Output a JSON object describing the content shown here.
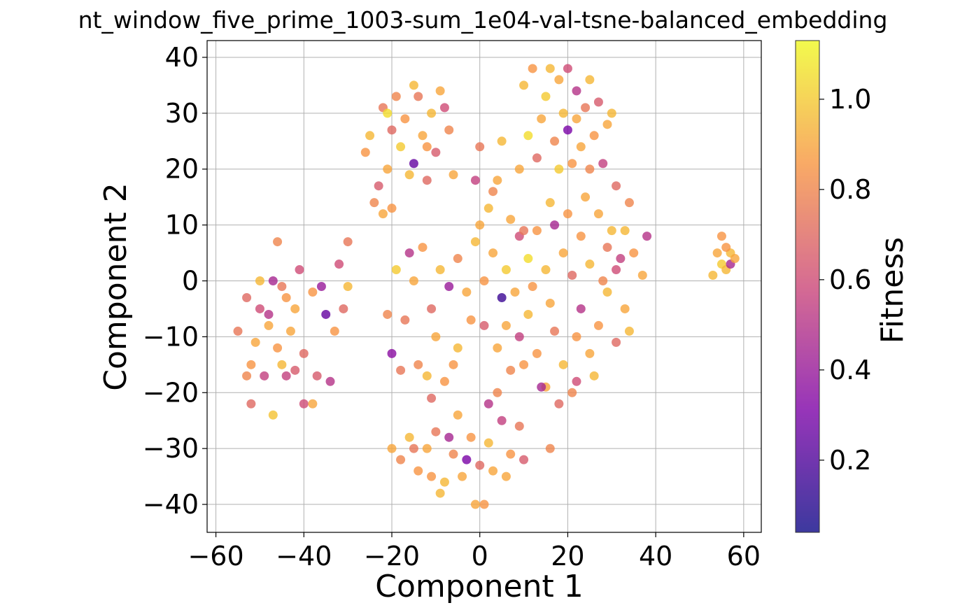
{
  "chart_data": {
    "type": "scatter",
    "title": "nt_window_five_prime_1003-sum_1e04-val-tsne-balanced_embedding",
    "xlabel": "Component 1",
    "ylabel": "Component 2",
    "xlim": [
      -62,
      64
    ],
    "ylim": [
      -45,
      43
    ],
    "xticks": [
      -60,
      -40,
      -20,
      0,
      20,
      40,
      60
    ],
    "yticks": [
      -40,
      -30,
      -20,
      -10,
      0,
      10,
      20,
      30,
      40
    ],
    "grid": true,
    "colormap": "plasma",
    "colorbar": {
      "label": "Fitness",
      "range": [
        0.04,
        1.13
      ],
      "ticks": [
        0.2,
        0.4,
        0.6,
        0.8,
        1.0
      ]
    },
    "points": [
      {
        "x": -55,
        "y": -9,
        "c": 0.75
      },
      {
        "x": -53,
        "y": -3,
        "c": 0.7
      },
      {
        "x": -52,
        "y": -15,
        "c": 0.85
      },
      {
        "x": -52,
        "y": -22,
        "c": 0.7
      },
      {
        "x": -51,
        "y": -11,
        "c": 0.9
      },
      {
        "x": -50,
        "y": 0,
        "c": 0.95
      },
      {
        "x": -50,
        "y": -5,
        "c": 0.6
      },
      {
        "x": -49,
        "y": -17,
        "c": 0.55
      },
      {
        "x": -48,
        "y": -8,
        "c": 0.9
      },
      {
        "x": -47,
        "y": 0,
        "c": 0.45
      },
      {
        "x": -47,
        "y": -24,
        "c": 0.98
      },
      {
        "x": -46,
        "y": 7,
        "c": 0.8
      },
      {
        "x": -46,
        "y": -12,
        "c": 0.85
      },
      {
        "x": -45,
        "y": -15,
        "c": 0.95
      },
      {
        "x": -44,
        "y": -3,
        "c": 0.85
      },
      {
        "x": -44,
        "y": -17,
        "c": 0.55
      },
      {
        "x": -43,
        "y": -9,
        "c": 0.9
      },
      {
        "x": -42,
        "y": -5,
        "c": 0.9
      },
      {
        "x": -41,
        "y": 2,
        "c": 0.6
      },
      {
        "x": -40,
        "y": -13,
        "c": 0.7
      },
      {
        "x": -40,
        "y": -22,
        "c": 0.6
      },
      {
        "x": -38,
        "y": -2,
        "c": 0.85
      },
      {
        "x": -37,
        "y": -17,
        "c": 0.65
      },
      {
        "x": -36,
        "y": -1,
        "c": 0.4
      },
      {
        "x": -35,
        "y": -6,
        "c": 0.25
      },
      {
        "x": -34,
        "y": -18,
        "c": 0.5
      },
      {
        "x": -33,
        "y": -9,
        "c": 0.85
      },
      {
        "x": -32,
        "y": 3,
        "c": 0.6
      },
      {
        "x": -31,
        "y": -5,
        "c": 0.7
      },
      {
        "x": -30,
        "y": 7,
        "c": 0.75
      },
      {
        "x": -30,
        "y": -1,
        "c": 0.95
      },
      {
        "x": -38,
        "y": -22,
        "c": 0.9
      },
      {
        "x": -45,
        "y": -1,
        "c": 0.75
      },
      {
        "x": -53,
        "y": -17,
        "c": 0.8
      },
      {
        "x": -48,
        "y": -6,
        "c": 0.5
      },
      {
        "x": -42,
        "y": -16,
        "c": 0.65
      },
      {
        "x": -26,
        "y": 23,
        "c": 0.85
      },
      {
        "x": -25,
        "y": 26,
        "c": 0.95
      },
      {
        "x": -23,
        "y": 17,
        "c": 0.65
      },
      {
        "x": -22,
        "y": 31,
        "c": 0.75
      },
      {
        "x": -22,
        "y": 12,
        "c": 0.9
      },
      {
        "x": -21,
        "y": 20,
        "c": 0.9
      },
      {
        "x": -20,
        "y": 27,
        "c": 0.7
      },
      {
        "x": -19,
        "y": 33,
        "c": 0.8
      },
      {
        "x": -18,
        "y": 24,
        "c": 1.0
      },
      {
        "x": -17,
        "y": 29,
        "c": 0.85
      },
      {
        "x": -16,
        "y": 19,
        "c": 0.95
      },
      {
        "x": -15,
        "y": 21,
        "c": 0.25
      },
      {
        "x": -14,
        "y": 33,
        "c": 0.75
      },
      {
        "x": -13,
        "y": 26,
        "c": 0.9
      },
      {
        "x": -12,
        "y": 18,
        "c": 0.7
      },
      {
        "x": -11,
        "y": 30,
        "c": 0.95
      },
      {
        "x": -10,
        "y": 23,
        "c": 0.65
      },
      {
        "x": -9,
        "y": 34,
        "c": 0.9
      },
      {
        "x": -8,
        "y": 31,
        "c": 0.6
      },
      {
        "x": -7,
        "y": 27,
        "c": 0.8
      },
      {
        "x": -6,
        "y": 19,
        "c": 0.9
      },
      {
        "x": -24,
        "y": 14,
        "c": 0.8
      },
      {
        "x": -20,
        "y": 13,
        "c": 0.85
      },
      {
        "x": -15,
        "y": 35,
        "c": 0.95
      },
      {
        "x": -21,
        "y": 30,
        "c": 1.05
      },
      {
        "x": -12,
        "y": 24,
        "c": 0.85
      },
      {
        "x": 10,
        "y": 35,
        "c": 0.95
      },
      {
        "x": 12,
        "y": 38,
        "c": 0.85
      },
      {
        "x": 14,
        "y": 29,
        "c": 0.9
      },
      {
        "x": 15,
        "y": 33,
        "c": 1.0
      },
      {
        "x": 17,
        "y": 25,
        "c": 0.8
      },
      {
        "x": 18,
        "y": 36,
        "c": 0.9
      },
      {
        "x": 19,
        "y": 30,
        "c": 0.95
      },
      {
        "x": 20,
        "y": 27,
        "c": 0.3
      },
      {
        "x": 21,
        "y": 21,
        "c": 0.85
      },
      {
        "x": 22,
        "y": 34,
        "c": 0.5
      },
      {
        "x": 23,
        "y": 24,
        "c": 0.9
      },
      {
        "x": 24,
        "y": 31,
        "c": 0.75
      },
      {
        "x": 25,
        "y": 36,
        "c": 0.95
      },
      {
        "x": 26,
        "y": 26,
        "c": 0.85
      },
      {
        "x": 27,
        "y": 32,
        "c": 0.65
      },
      {
        "x": 28,
        "y": 21,
        "c": 0.55
      },
      {
        "x": 29,
        "y": 28,
        "c": 0.9
      },
      {
        "x": 30,
        "y": 30,
        "c": 0.95
      },
      {
        "x": 11,
        "y": 26,
        "c": 1.05
      },
      {
        "x": 13,
        "y": 22,
        "c": 0.7
      },
      {
        "x": 16,
        "y": 38,
        "c": 0.95
      },
      {
        "x": 20,
        "y": 38,
        "c": 0.6
      },
      {
        "x": 22,
        "y": 29,
        "c": 0.9
      },
      {
        "x": 25,
        "y": 20,
        "c": 0.8
      },
      {
        "x": 18,
        "y": 20,
        "c": 1.0
      },
      {
        "x": 9,
        "y": 20,
        "c": 0.9
      },
      {
        "x": 5,
        "y": 25,
        "c": 0.95
      },
      {
        "x": 4,
        "y": 18,
        "c": 0.9
      },
      {
        "x": 2,
        "y": 13,
        "c": 0.95
      },
      {
        "x": 0,
        "y": 24,
        "c": 0.75
      },
      {
        "x": -1,
        "y": 18,
        "c": 0.55
      },
      {
        "x": 7,
        "y": 11,
        "c": 0.9
      },
      {
        "x": 9,
        "y": 8,
        "c": 0.6
      },
      {
        "x": 11,
        "y": 4,
        "c": 1.05
      },
      {
        "x": 13,
        "y": 9,
        "c": 0.85
      },
      {
        "x": 15,
        "y": 2,
        "c": 0.95
      },
      {
        "x": 17,
        "y": 10,
        "c": 0.45
      },
      {
        "x": 19,
        "y": 5,
        "c": 0.9
      },
      {
        "x": 21,
        "y": 1,
        "c": 0.7
      },
      {
        "x": 23,
        "y": 8,
        "c": 0.85
      },
      {
        "x": 25,
        "y": 3,
        "c": 0.95
      },
      {
        "x": 27,
        "y": 12,
        "c": 0.9
      },
      {
        "x": 29,
        "y": 6,
        "c": 0.75
      },
      {
        "x": 31,
        "y": 2,
        "c": 0.6
      },
      {
        "x": 33,
        "y": 9,
        "c": 0.95
      },
      {
        "x": 35,
        "y": 5,
        "c": 0.85
      },
      {
        "x": 37,
        "y": 1,
        "c": 0.9
      },
      {
        "x": 38,
        "y": 8,
        "c": 0.5
      },
      {
        "x": 34,
        "y": 14,
        "c": 0.8
      },
      {
        "x": 31,
        "y": 17,
        "c": 0.7
      },
      {
        "x": 3,
        "y": 5,
        "c": 0.9
      },
      {
        "x": 5,
        "y": -3,
        "c": 0.15
      },
      {
        "x": 1,
        "y": 0,
        "c": 0.85
      },
      {
        "x": -1,
        "y": 7,
        "c": 0.95
      },
      {
        "x": -3,
        "y": -2,
        "c": 0.9
      },
      {
        "x": -5,
        "y": 4,
        "c": 0.8
      },
      {
        "x": -7,
        "y": -1,
        "c": 0.4
      },
      {
        "x": -9,
        "y": 2,
        "c": 0.95
      },
      {
        "x": -11,
        "y": -5,
        "c": 0.7
      },
      {
        "x": -13,
        "y": 6,
        "c": 0.85
      },
      {
        "x": -15,
        "y": 0,
        "c": 0.9
      },
      {
        "x": -17,
        "y": -7,
        "c": 0.75
      },
      {
        "x": -19,
        "y": 2,
        "c": 1.0
      },
      {
        "x": -21,
        "y": -6,
        "c": 0.8
      },
      {
        "x": -20,
        "y": -13,
        "c": 0.35
      },
      {
        "x": -16,
        "y": 5,
        "c": 0.5
      },
      {
        "x": -10,
        "y": -10,
        "c": 0.9
      },
      {
        "x": -5,
        "y": -12,
        "c": 0.95
      },
      {
        "x": -2,
        "y": -7,
        "c": 0.85
      },
      {
        "x": 1,
        "y": -8,
        "c": 0.65
      },
      {
        "x": 4,
        "y": -12,
        "c": 0.9
      },
      {
        "x": 7,
        "y": -16,
        "c": 0.8
      },
      {
        "x": 9,
        "y": -10,
        "c": 0.55
      },
      {
        "x": 11,
        "y": -6,
        "c": 0.95
      },
      {
        "x": 13,
        "y": -13,
        "c": 0.85
      },
      {
        "x": 15,
        "y": -19,
        "c": 0.9
      },
      {
        "x": 17,
        "y": -9,
        "c": 0.75
      },
      {
        "x": 19,
        "y": -15,
        "c": 0.95
      },
      {
        "x": 21,
        "y": -20,
        "c": 0.8
      },
      {
        "x": 23,
        "y": -5,
        "c": 0.5
      },
      {
        "x": 25,
        "y": -13,
        "c": 0.9
      },
      {
        "x": 27,
        "y": -8,
        "c": 0.85
      },
      {
        "x": 29,
        "y": -2,
        "c": 0.95
      },
      {
        "x": 31,
        "y": -11,
        "c": 0.7
      },
      {
        "x": 33,
        "y": -5,
        "c": 0.9
      },
      {
        "x": 34,
        "y": -9,
        "c": 0.95
      },
      {
        "x": 14,
        "y": -19,
        "c": 0.45
      },
      {
        "x": 18,
        "y": -22,
        "c": 0.7
      },
      {
        "x": 22,
        "y": -18,
        "c": 0.6
      },
      {
        "x": 10,
        "y": -15,
        "c": 0.85
      },
      {
        "x": 26,
        "y": -17,
        "c": 0.95
      },
      {
        "x": 6,
        "y": -8,
        "c": 0.9
      },
      {
        "x": -8,
        "y": -18,
        "c": 0.85
      },
      {
        "x": -12,
        "y": -17,
        "c": 0.95
      },
      {
        "x": -14,
        "y": -15,
        "c": 0.8
      },
      {
        "x": -18,
        "y": -16,
        "c": 0.75
      },
      {
        "x": -6,
        "y": -15,
        "c": 0.85
      },
      {
        "x": -11,
        "y": -21,
        "c": 0.7
      },
      {
        "x": 0,
        "y": 10,
        "c": 0.9
      },
      {
        "x": 3,
        "y": 16,
        "c": 0.8
      },
      {
        "x": 6,
        "y": 2,
        "c": 1.0
      },
      {
        "x": 8,
        "y": -2,
        "c": 0.9
      },
      {
        "x": 12,
        "y": -1,
        "c": 0.85
      },
      {
        "x": 16,
        "y": 14,
        "c": 0.95
      },
      {
        "x": 20,
        "y": 12,
        "c": 0.85
      },
      {
        "x": 24,
        "y": 15,
        "c": 0.9
      },
      {
        "x": 28,
        "y": 0,
        "c": 0.8
      },
      {
        "x": 30,
        "y": 9,
        "c": 0.95
      },
      {
        "x": 32,
        "y": 4,
        "c": 0.55
      },
      {
        "x": 22,
        "y": -10,
        "c": 0.85
      },
      {
        "x": 16,
        "y": -4,
        "c": 0.9
      },
      {
        "x": 10,
        "y": 9,
        "c": 0.75
      },
      {
        "x": -20,
        "y": -30,
        "c": 0.9
      },
      {
        "x": -18,
        "y": -32,
        "c": 0.8
      },
      {
        "x": -16,
        "y": -28,
        "c": 0.95
      },
      {
        "x": -14,
        "y": -34,
        "c": 0.85
      },
      {
        "x": -12,
        "y": -30,
        "c": 0.9
      },
      {
        "x": -10,
        "y": -27,
        "c": 0.75
      },
      {
        "x": -8,
        "y": -36,
        "c": 0.95
      },
      {
        "x": -6,
        "y": -31,
        "c": 0.8
      },
      {
        "x": -4,
        "y": -35,
        "c": 0.9
      },
      {
        "x": -2,
        "y": -28,
        "c": 0.85
      },
      {
        "x": 0,
        "y": -33,
        "c": 0.7
      },
      {
        "x": 1,
        "y": -40,
        "c": 0.85
      },
      {
        "x": 2,
        "y": -29,
        "c": 0.95
      },
      {
        "x": 3,
        "y": -34,
        "c": 0.9
      },
      {
        "x": 5,
        "y": -25,
        "c": 0.55
      },
      {
        "x": 7,
        "y": -31,
        "c": 0.85
      },
      {
        "x": 9,
        "y": -26,
        "c": 0.75
      },
      {
        "x": -3,
        "y": -32,
        "c": 0.3
      },
      {
        "x": -7,
        "y": -28,
        "c": 0.45
      },
      {
        "x": -1,
        "y": -40,
        "c": 0.9
      },
      {
        "x": -9,
        "y": -38,
        "c": 0.95
      },
      {
        "x": 10,
        "y": -32,
        "c": 0.65
      },
      {
        "x": 4,
        "y": -20,
        "c": 0.8
      },
      {
        "x": -5,
        "y": -24,
        "c": 0.9
      },
      {
        "x": -11,
        "y": -35,
        "c": 0.85
      },
      {
        "x": 16,
        "y": -30,
        "c": 0.8
      },
      {
        "x": 2,
        "y": -22,
        "c": 0.5
      },
      {
        "x": -15,
        "y": -30,
        "c": 0.75
      },
      {
        "x": 6,
        "y": -35,
        "c": 0.9
      },
      {
        "x": 53,
        "y": 1,
        "c": 0.95
      },
      {
        "x": 54,
        "y": 5,
        "c": 0.9
      },
      {
        "x": 55,
        "y": 8,
        "c": 0.85
      },
      {
        "x": 55,
        "y": 3,
        "c": 1.0
      },
      {
        "x": 56,
        "y": 2,
        "c": 0.95
      },
      {
        "x": 57,
        "y": 3,
        "c": 0.45
      },
      {
        "x": 57,
        "y": 5,
        "c": 0.95
      },
      {
        "x": 58,
        "y": 4,
        "c": 0.9
      },
      {
        "x": 56,
        "y": 6,
        "c": 0.85
      }
    ]
  }
}
